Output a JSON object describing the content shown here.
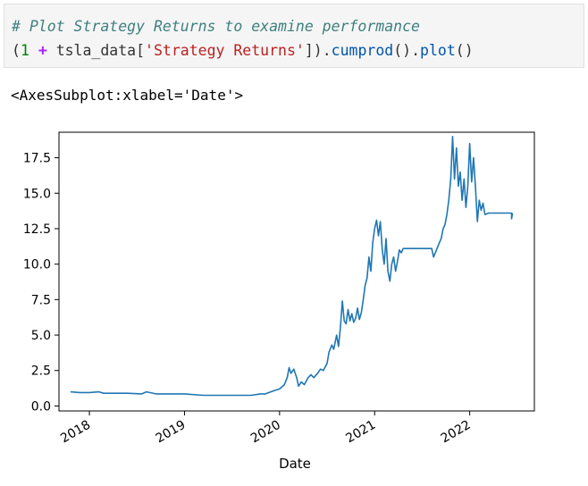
{
  "code_cell": {
    "comment": "# Plot Strategy Returns to examine performance",
    "line2": {
      "open_paren": "(",
      "one": "1",
      "plus": "+",
      "var": "tsla_data[",
      "key": "'Strategy Returns'",
      "close": "]).",
      "method1": "cumprod",
      "mid": "().",
      "method2": "plot",
      "end": "()"
    }
  },
  "output": {
    "repr": "<AxesSubplot:xlabel='Date'>"
  },
  "chart_data": {
    "type": "line",
    "xlabel": "Date",
    "ylabel": "",
    "ylim": [
      -0.35,
      19.3
    ],
    "yticks": [
      0.0,
      2.5,
      5.0,
      7.5,
      10.0,
      12.5,
      15.0,
      17.5
    ],
    "ytick_labels": [
      "0.0",
      "2.5",
      "5.0",
      "7.5",
      "10.0",
      "12.5",
      "15.0",
      "17.5"
    ],
    "xlim": [
      2017.68,
      2022.68
    ],
    "xticks": [
      2018,
      2019,
      2020,
      2021,
      2022
    ],
    "xtick_labels": [
      "2018",
      "2019",
      "2020",
      "2021",
      "2022"
    ],
    "grid": false,
    "line_color": "#1f77b4",
    "x": [
      2017.8,
      2017.9,
      2018.0,
      2018.1,
      2018.15,
      2018.25,
      2018.4,
      2018.55,
      2018.6,
      2018.7,
      2018.85,
      2019.0,
      2019.2,
      2019.4,
      2019.6,
      2019.7,
      2019.8,
      2019.85,
      2019.95,
      2020.0,
      2020.05,
      2020.08,
      2020.1,
      2020.12,
      2020.15,
      2020.18,
      2020.2,
      2020.23,
      2020.26,
      2020.3,
      2020.33,
      2020.36,
      2020.4,
      2020.43,
      2020.46,
      2020.5,
      2020.52,
      2020.55,
      2020.57,
      2020.6,
      2020.62,
      2020.64,
      2020.66,
      2020.68,
      2020.7,
      2020.72,
      2020.74,
      2020.76,
      2020.78,
      2020.8,
      2020.82,
      2020.84,
      2020.86,
      2020.88,
      2020.9,
      2020.92,
      2020.94,
      2020.96,
      2020.98,
      2021.0,
      2021.02,
      2021.04,
      2021.06,
      2021.08,
      2021.1,
      2021.12,
      2021.14,
      2021.16,
      2021.18,
      2021.2,
      2021.22,
      2021.24,
      2021.26,
      2021.28,
      2021.3,
      2021.6,
      2021.62,
      2021.65,
      2021.68,
      2021.7,
      2021.72,
      2021.74,
      2021.76,
      2021.78,
      2021.8,
      2021.82,
      2021.84,
      2021.86,
      2021.88,
      2021.9,
      2021.92,
      2021.94,
      2021.96,
      2021.98,
      2022.0,
      2022.02,
      2022.04,
      2022.06,
      2022.08,
      2022.1,
      2022.12,
      2022.14,
      2022.16,
      2022.2,
      2022.3,
      2022.44,
      2022.44,
      2022.45
    ],
    "y": [
      1.0,
      0.95,
      0.95,
      1.0,
      0.9,
      0.9,
      0.9,
      0.85,
      1.0,
      0.85,
      0.85,
      0.85,
      0.75,
      0.75,
      0.75,
      0.75,
      0.85,
      0.85,
      1.1,
      1.2,
      1.5,
      2.0,
      2.7,
      2.3,
      2.6,
      2.0,
      1.4,
      1.7,
      1.5,
      2.0,
      2.2,
      2.0,
      2.3,
      2.6,
      2.5,
      3.0,
      3.8,
      4.3,
      4.0,
      5.0,
      4.2,
      5.5,
      7.4,
      6.0,
      5.8,
      6.8,
      6.0,
      6.5,
      5.9,
      6.2,
      6.9,
      6.1,
      6.6,
      7.5,
      8.5,
      9.0,
      10.5,
      9.5,
      11.5,
      12.5,
      13.1,
      12.0,
      13.0,
      11.0,
      10.0,
      11.8,
      9.5,
      8.8,
      10.0,
      10.5,
      9.5,
      10.2,
      11.0,
      10.8,
      11.1,
      11.1,
      10.5,
      11.0,
      11.5,
      11.8,
      12.5,
      12.8,
      13.5,
      14.5,
      16.0,
      19.0,
      16.0,
      18.2,
      15.5,
      16.5,
      14.5,
      16.0,
      14.0,
      15.5,
      18.5,
      15.8,
      17.5,
      15.5,
      13.0,
      14.5,
      13.8,
      14.3,
      13.5,
      13.6,
      13.6,
      13.6,
      13.2,
      13.6
    ]
  }
}
